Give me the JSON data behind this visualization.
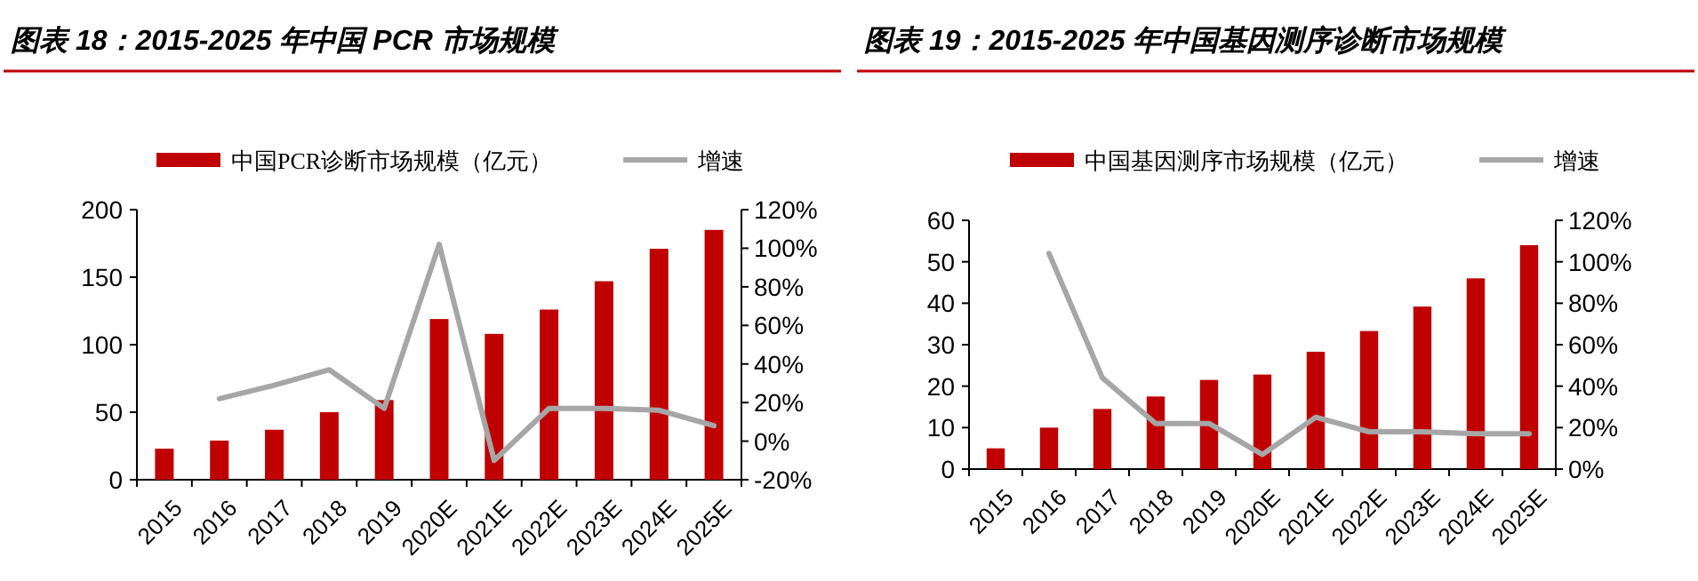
{
  "chart_data": [
    {
      "type": "bar",
      "title": "图表 18：2015-2025 年中国 PCR 市场规模",
      "categories": [
        "2015",
        "2016",
        "2017",
        "2018",
        "2019",
        "2020E",
        "2021E",
        "2022E",
        "2023E",
        "2024E",
        "2025E"
      ],
      "series": [
        {
          "name": "中国PCR诊断市场规模（亿元）",
          "color": "#c00000",
          "values": [
            23,
            29,
            37,
            50,
            59,
            119,
            108,
            126,
            147,
            171,
            185
          ]
        },
        {
          "name": "增速",
          "type": "line",
          "axis": "y2",
          "color": "#a6a6a6",
          "values": [
            null,
            22,
            29,
            37,
            17,
            102,
            -10,
            17,
            17,
            16,
            8
          ]
        }
      ],
      "ylim": [
        0,
        200
      ],
      "yticks": [
        0,
        50,
        100,
        150,
        200
      ],
      "y2lim": [
        -20,
        120
      ],
      "y2ticks": [
        {
          "value": -20,
          "label": "-20%"
        },
        {
          "value": 0,
          "label": "0%"
        },
        {
          "value": 20,
          "label": "20%"
        },
        {
          "value": 40,
          "label": "40%"
        },
        {
          "value": 60,
          "label": "60%"
        },
        {
          "value": 80,
          "label": "80%"
        },
        {
          "value": 100,
          "label": "100%"
        },
        {
          "value": 120,
          "label": "120%"
        }
      ],
      "legend": "top",
      "grid": false
    },
    {
      "type": "bar",
      "title": "图表 19：2015-2025 年中国基因测序诊断市场规模",
      "categories": [
        "2015",
        "2016",
        "2017",
        "2018",
        "2019",
        "2020E",
        "2021E",
        "2022E",
        "2023E",
        "2024E",
        "2025E"
      ],
      "series": [
        {
          "name": "中国基因测序市场规模（亿元）",
          "color": "#c00000",
          "values": [
            5,
            10,
            14.5,
            17.5,
            21.5,
            22.8,
            28.3,
            33.3,
            39.2,
            46,
            54
          ]
        },
        {
          "name": "增速",
          "type": "line",
          "axis": "y2",
          "color": "#a6a6a6",
          "values": [
            null,
            104,
            44,
            22,
            22,
            7,
            25,
            18,
            18,
            17,
            17
          ]
        }
      ],
      "ylim": [
        0,
        60
      ],
      "yticks": [
        0,
        10,
        20,
        30,
        40,
        50,
        60
      ],
      "y2lim": [
        0,
        120
      ],
      "y2ticks": [
        {
          "value": 0,
          "label": "0%"
        },
        {
          "value": 20,
          "label": "20%"
        },
        {
          "value": 40,
          "label": "40%"
        },
        {
          "value": 60,
          "label": "60%"
        },
        {
          "value": 80,
          "label": "80%"
        },
        {
          "value": 100,
          "label": "100%"
        },
        {
          "value": 120,
          "label": "120%"
        }
      ],
      "legend": "top",
      "grid": false
    }
  ]
}
